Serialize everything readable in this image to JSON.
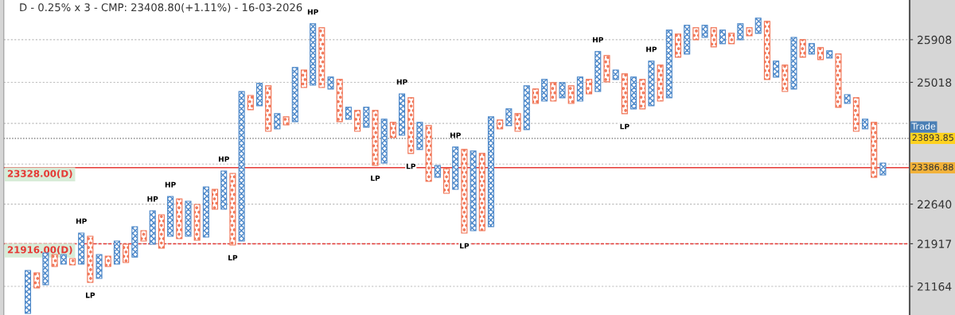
{
  "chart_data": {
    "type": "bar",
    "title": "D - 0.25% x 3 - CMP: 23408.80(+1.11%) - 16-03-2026",
    "categories": [
      null,
      null,
      null,
      null,
      null,
      null,
      null,
      null,
      null,
      null,
      null,
      null,
      null,
      null,
      null,
      null,
      null,
      null,
      null,
      null,
      null,
      null,
      null,
      null,
      null,
      null,
      null,
      null,
      null,
      null,
      null,
      null,
      null,
      null,
      null,
      null,
      null,
      null,
      null,
      null,
      null,
      null,
      null,
      null,
      null,
      null,
      null,
      null,
      null,
      null,
      null,
      null,
      null,
      null,
      null,
      null,
      null,
      null,
      null,
      null,
      null,
      null,
      null,
      null,
      null,
      null,
      null,
      null,
      null,
      null,
      null,
      null,
      null,
      null,
      null,
      null,
      null,
      null,
      null,
      null,
      null,
      null,
      null,
      null,
      null,
      null,
      null,
      null,
      null,
      null,
      null,
      null,
      null,
      null,
      null,
      null,
      null
    ],
    "values": [
      742,
      264,
      559,
      211,
      169,
      112,
      556,
      819,
      421,
      183,
      412,
      327,
      545,
      187,
      608,
      606,
      731,
      730,
      642,
      655,
      924,
      370,
      717,
      1323,
      2866,
      288,
      452,
      911,
      301,
      159,
      1098,
      360,
      1287,
      1250,
      245,
      852,
      239,
      412,
      397,
      1077,
      856,
      299,
      826,
      1102,
      531,
      1079,
      227,
      467,
      807,
      1568,
      1494,
      1448,
      2095,
      174,
      333,
      348,
      879,
      291,
      439,
      373,
      308,
      356,
      488,
      294,
      824,
      544,
      196,
      809,
      647,
      598,
      913,
      735,
      1409,
      488,
      609,
      255,
      257,
      406,
      288,
      220,
      341,
      170,
      325,
      1223,
      330,
      541,
      1077,
      369,
      218,
      251,
      151,
      1095,
      177,
      668,
      190,
      1066,
      228
    ],
    "base": [
      20700,
      21136,
      21192,
      21512,
      21554,
      21540,
      21554,
      21233,
      21302,
      21512,
      21554,
      21582,
      21680,
      21966,
      21909,
      21838,
      22052,
      22009,
      22052,
      21980,
      22038,
      22547,
      22547,
      21895,
      21966,
      24463,
      24543,
      24035,
      24082,
      24161,
      24225,
      24913,
      24962,
      24913,
      24881,
      24225,
      24272,
      24035,
      24114,
      23370,
      23416,
      23910,
      23957,
      23601,
      23678,
      23067,
      23143,
      22843,
      22917,
      22110,
      22153,
      22153,
      22225,
      24082,
      24146,
      24035,
      24067,
      24590,
      24638,
      24638,
      24703,
      24590,
      24638,
      24783,
      24832,
      25028,
      25077,
      24383,
      24479,
      24479,
      24543,
      24638,
      24703,
      25539,
      25606,
      25908,
      25958,
      25757,
      25824,
      25824,
      25908,
      25993,
      26044,
      25077,
      25126,
      24832,
      24881,
      25539,
      25606,
      25489,
      25522,
      24511,
      24590,
      24035,
      24082,
      23143,
      23188
    ],
    "colors": [
      "#4a86c8",
      "#f07050",
      "#4a86c8",
      "#f07050",
      "#4a86c8",
      "#f07050",
      "#4a86c8",
      "#f07050",
      "#4a86c8",
      "#f07050",
      "#4a86c8",
      "#f07050",
      "#4a86c8",
      "#f07050",
      "#4a86c8",
      "#f07050",
      "#4a86c8",
      "#f07050",
      "#4a86c8",
      "#f07050",
      "#4a86c8",
      "#f07050",
      "#4a86c8",
      "#f07050",
      "#4a86c8",
      "#f07050",
      "#4a86c8",
      "#f07050",
      "#4a86c8",
      "#f07050",
      "#4a86c8",
      "#f07050",
      "#4a86c8",
      "#f07050",
      "#4a86c8",
      "#f07050",
      "#4a86c8",
      "#f07050",
      "#4a86c8",
      "#f07050",
      "#4a86c8",
      "#f07050",
      "#4a86c8",
      "#f07050",
      "#4a86c8",
      "#f07050",
      "#4a86c8",
      "#f07050",
      "#4a86c8",
      "#f07050",
      "#4a86c8",
      "#f07050",
      "#4a86c8",
      "#f07050",
      "#4a86c8",
      "#f07050",
      "#4a86c8",
      "#f07050",
      "#4a86c8",
      "#f07050",
      "#4a86c8",
      "#f07050",
      "#4a86c8",
      "#f07050",
      "#4a86c8",
      "#f07050",
      "#4a86c8",
      "#f07050",
      "#4a86c8",
      "#f07050",
      "#4a86c8",
      "#f07050",
      "#4a86c8",
      "#f07050",
      "#4a86c8",
      "#f07050",
      "#4a86c8",
      "#f07050",
      "#4a86c8",
      "#f07050",
      "#4a86c8",
      "#f07050",
      "#4a86c8",
      "#f07050",
      "#4a86c8",
      "#f07050",
      "#4a86c8",
      "#f07050",
      "#4a86c8",
      "#f07050",
      "#4a86c8",
      "#f07050",
      "#4a86c8",
      "#f07050",
      "#4a86c8",
      "#f07050",
      "#4a86c8"
    ],
    "value_labels": [
      null,
      null,
      null,
      null,
      null,
      null,
      "HP",
      "LP",
      null,
      null,
      null,
      null,
      null,
      null,
      "HP",
      null,
      "HP",
      null,
      null,
      null,
      null,
      null,
      "HP",
      "LP",
      null,
      null,
      null,
      null,
      null,
      null,
      null,
      null,
      "HP",
      null,
      null,
      null,
      null,
      null,
      null,
      "LP",
      null,
      null,
      "HP",
      "LP",
      null,
      null,
      null,
      null,
      "HP",
      "LP",
      null,
      null,
      null,
      null,
      null,
      null,
      null,
      null,
      null,
      null,
      null,
      null,
      null,
      null,
      "HP",
      null,
      null,
      "LP",
      null,
      null,
      "HP",
      null,
      null,
      null,
      null,
      null,
      null,
      null,
      null,
      null,
      null,
      null,
      null,
      null,
      null,
      null,
      null,
      null,
      null,
      null,
      null,
      null,
      null,
      null,
      null,
      null,
      null
    ],
    "log": true,
    "ylim": [
      20673,
      26765
    ],
    "yticks": [
      21164,
      21917,
      22640,
      {
        "value": 23397,
        "label": null
      },
      {
        "value": 24190,
        "label": null
      },
      25018,
      25908
    ],
    "grid": "y",
    "ref_lines": [
      {
        "axis": "y",
        "value": 23328,
        "label": "23328.00(D)",
        "color": "#e53935",
        "line_style": "solid"
      },
      {
        "axis": "y",
        "value": 21916,
        "label": "21916.00(D)",
        "color": "#e53935",
        "line_style": "dashed"
      },
      {
        "axis": "y",
        "value": 23893.85,
        "label": "23893.85",
        "color": "#808080",
        "line_style": "dotted"
      }
    ],
    "annotations": [
      "Trade",
      "23386.88"
    ]
  }
}
